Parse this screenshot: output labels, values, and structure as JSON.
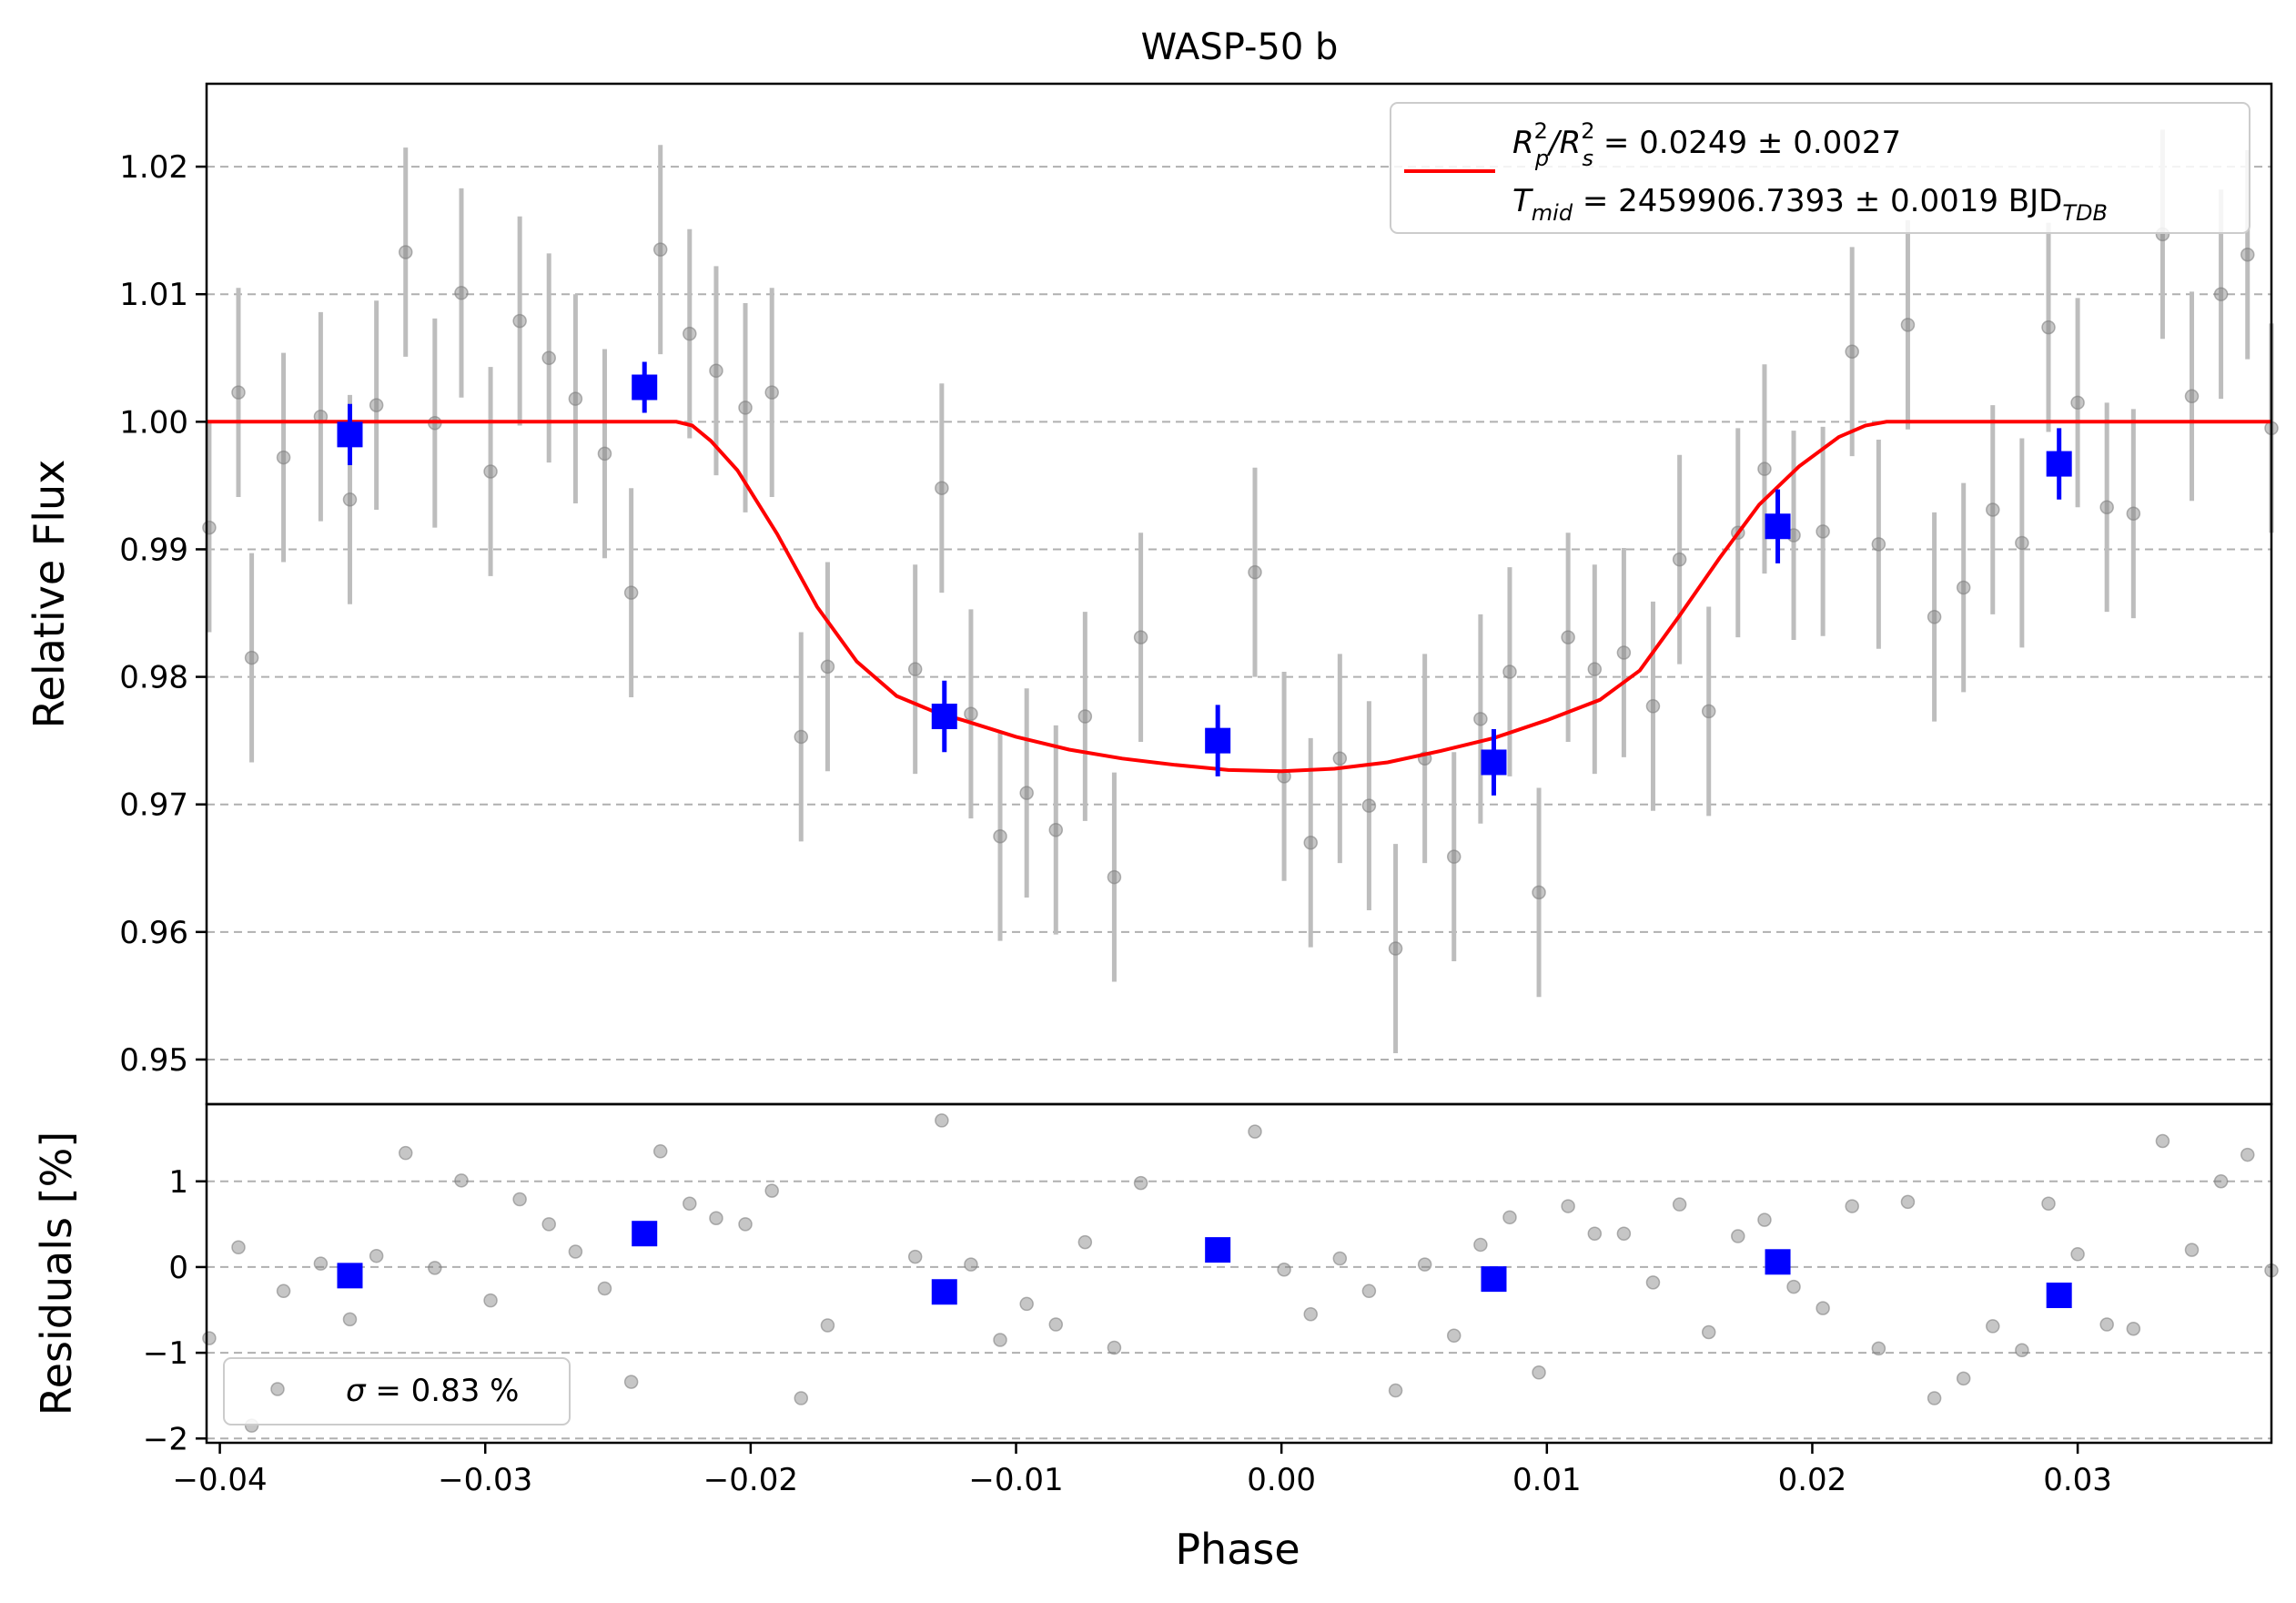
{
  "chart_data": [
    {
      "type": "scatter",
      "panel": "flux",
      "title": "WASP-50 b",
      "xlabel": "",
      "ylabel": "Relative Flux",
      "xlim": [
        -0.0405,
        0.0373
      ],
      "ylim": [
        0.9465,
        1.0265
      ],
      "yticks": [
        0.95,
        0.96,
        0.97,
        0.98,
        0.99,
        1.0,
        1.01,
        1.02
      ],
      "ytick_labels": [
        "0.95",
        "0.96",
        "0.97",
        "0.98",
        "0.99",
        "1.00",
        "1.01",
        "1.02"
      ],
      "grid": "horizontal-dashed",
      "legend": {
        "placement": "top-right",
        "line1_a": "R",
        "line1_a_sup": "2",
        "line1_a_sub": "p",
        "line1_b": "/R",
        "line1_b_sup": "2",
        "line1_b_sub": "s",
        "line1_value": " = 0.0249 ± 0.0027",
        "line2_a": "T",
        "line2_a_sub": "mid",
        "line2_value": " = 2459906.7393 ± 0.0019 BJD",
        "line2_unit_sub": "TDB"
      },
      "model": {
        "color": "#ff0000",
        "x": [
          -0.0405,
          -0.0228,
          -0.0222,
          -0.0215,
          -0.0205,
          -0.019,
          -0.0175,
          -0.016,
          -0.0145,
          -0.013,
          -0.012,
          -0.01,
          -0.008,
          -0.006,
          -0.004,
          -0.002,
          0.0,
          0.002,
          0.004,
          0.006,
          0.008,
          0.01,
          0.012,
          0.0135,
          0.015,
          0.0165,
          0.018,
          0.0195,
          0.021,
          0.022,
          0.0228,
          0.0373
        ],
        "y": [
          1.0,
          1.0,
          0.9997,
          0.9985,
          0.9962,
          0.9912,
          0.9855,
          0.9812,
          0.9785,
          0.9772,
          0.9766,
          0.9753,
          0.9743,
          0.9736,
          0.9731,
          0.9727,
          0.9726,
          0.9728,
          0.9733,
          0.9742,
          0.9752,
          0.9766,
          0.9782,
          0.9805,
          0.9848,
          0.9893,
          0.9935,
          0.9965,
          0.9988,
          0.9997,
          1.0,
          1.0
        ]
      },
      "raw": {
        "color": "#808080",
        "x": [
          -0.0404,
          -0.0393,
          -0.0388,
          -0.0376,
          -0.0362,
          -0.0351,
          -0.0341,
          -0.033,
          -0.0319,
          -0.0309,
          -0.0298,
          -0.0287,
          -0.0276,
          -0.0266,
          -0.0255,
          -0.0245,
          -0.0234,
          -0.0223,
          -0.0213,
          -0.0202,
          -0.0192,
          -0.0181,
          -0.0171,
          -0.0138,
          -0.0128,
          -0.0117,
          -0.0106,
          -0.0096,
          -0.0085,
          -0.0074,
          -0.0063,
          -0.0053,
          -0.001,
          0.0001,
          0.0011,
          0.0022,
          0.0033,
          0.0043,
          0.0054,
          0.0065,
          0.0075,
          0.0086,
          0.0097,
          0.0108,
          0.0118,
          0.0129,
          0.014,
          0.015,
          0.0161,
          0.0172,
          0.0182,
          0.0193,
          0.0204,
          0.0215,
          0.0225,
          0.0236,
          0.0246,
          0.0257,
          0.0268,
          0.0279,
          0.0289,
          0.03,
          0.0311,
          0.0321,
          0.0332,
          0.0343,
          0.0354,
          0.0364,
          0.0373
        ],
        "y": [
          0.9917,
          1.0023,
          0.9815,
          0.9972,
          1.0004,
          0.9939,
          1.0013,
          1.0133,
          0.9999,
          1.0101,
          0.9961,
          1.0079,
          1.005,
          1.0018,
          0.9975,
          0.9866,
          1.0135,
          1.0069,
          1.004,
          1.0011,
          1.0023,
          0.9753,
          0.9808,
          0.9806,
          0.9948,
          0.9771,
          0.9675,
          0.9709,
          0.968,
          0.9769,
          0.9643,
          0.9831,
          0.9882,
          0.9722,
          0.967,
          0.9736,
          0.9699,
          0.9587,
          0.9736,
          0.9659,
          0.9767,
          0.9804,
          0.9631,
          0.9831,
          0.9806,
          0.9819,
          0.9777,
          0.9892,
          0.9773,
          0.9913,
          0.9963,
          0.9911,
          0.9914,
          1.0055,
          0.9904,
          1.0076,
          0.9847,
          0.987,
          0.9931,
          0.9905,
          1.0074,
          1.0015,
          0.9933,
          0.9928,
          1.0147,
          1.002,
          1.01,
          1.0131,
          0.9995
        ],
        "yerr": 0.0082
      },
      "binned": {
        "color": "#0000ff",
        "x": [
          -0.0351,
          -0.024,
          -0.0127,
          -0.0024,
          0.008,
          0.0187,
          0.0293
        ],
        "y": [
          0.999,
          1.0027,
          0.9769,
          0.975,
          0.9733,
          0.9918,
          0.9967
        ],
        "yerr": [
          0.0024,
          0.002,
          0.0028,
          0.0028,
          0.0026,
          0.0029,
          0.0028
        ]
      }
    },
    {
      "type": "scatter",
      "panel": "residuals",
      "xlabel": "Phase",
      "ylabel": "Residuals [%]",
      "xlim": [
        -0.0405,
        0.0373
      ],
      "ylim": [
        -2.05,
        1.9
      ],
      "xticks": [
        -0.04,
        -0.03,
        -0.02,
        -0.01,
        0.0,
        0.01,
        0.02,
        0.03
      ],
      "xtick_labels": [
        "−0.04",
        "−0.03",
        "−0.02",
        "−0.01",
        "0.00",
        "0.01",
        "0.02",
        "0.03"
      ],
      "yticks": [
        -2,
        -1,
        0,
        1
      ],
      "ytick_labels": [
        "−2",
        "−1",
        "0",
        "1"
      ],
      "grid": "horizontal-dashed",
      "legend": {
        "placement": "bottom-left",
        "symbol": "σ",
        "text": " = 0.83 %"
      },
      "raw": {
        "color": "#808080",
        "x": [
          -0.0404,
          -0.0393,
          -0.0388,
          -0.0376,
          -0.0362,
          -0.0351,
          -0.0341,
          -0.033,
          -0.0319,
          -0.0309,
          -0.0298,
          -0.0287,
          -0.0276,
          -0.0266,
          -0.0255,
          -0.0245,
          -0.0234,
          -0.0223,
          -0.0213,
          -0.0202,
          -0.0192,
          -0.0181,
          -0.0171,
          -0.0138,
          -0.0128,
          -0.0117,
          -0.0106,
          -0.0096,
          -0.0085,
          -0.0074,
          -0.0063,
          -0.0053,
          -0.001,
          0.0001,
          0.0011,
          0.0022,
          0.0033,
          0.0043,
          0.0054,
          0.0065,
          0.0075,
          0.0086,
          0.0097,
          0.0108,
          0.0118,
          0.0129,
          0.014,
          0.015,
          0.0161,
          0.0172,
          0.0182,
          0.0193,
          0.0204,
          0.0215,
          0.0225,
          0.0236,
          0.0246,
          0.0257,
          0.0268,
          0.0279,
          0.0289,
          0.03,
          0.0311,
          0.0321,
          0.0332,
          0.0343,
          0.0354,
          0.0364,
          0.0373
        ],
        "y": [
          -0.83,
          0.23,
          -1.85,
          -0.28,
          0.04,
          -0.61,
          0.13,
          1.33,
          -0.01,
          1.01,
          -0.39,
          0.79,
          0.5,
          0.18,
          -0.25,
          -1.34,
          1.35,
          0.74,
          0.57,
          0.5,
          0.89,
          -1.53,
          -0.68,
          0.12,
          1.71,
          0.03,
          -0.85,
          -0.43,
          -0.67,
          0.29,
          -0.94,
          0.98,
          1.58,
          -0.03,
          -0.55,
          0.1,
          -0.28,
          -1.44,
          0.03,
          -0.8,
          0.26,
          0.58,
          -1.23,
          0.71,
          0.39,
          0.39,
          -0.18,
          0.73,
          -0.76,
          0.36,
          0.55,
          -0.23,
          -0.48,
          0.71,
          -0.95,
          0.76,
          -1.53,
          -1.3,
          -0.69,
          -0.97,
          0.74,
          0.15,
          -0.67,
          -0.72,
          1.47,
          0.2,
          1.0,
          1.31,
          -0.04
        ]
      },
      "binned": {
        "color": "#0000ff",
        "x": [
          -0.0351,
          -0.024,
          -0.0127,
          -0.0024,
          0.008,
          0.0187,
          0.0293
        ],
        "y": [
          -0.1,
          0.39,
          -0.29,
          0.2,
          -0.14,
          0.06,
          -0.33
        ]
      }
    }
  ]
}
